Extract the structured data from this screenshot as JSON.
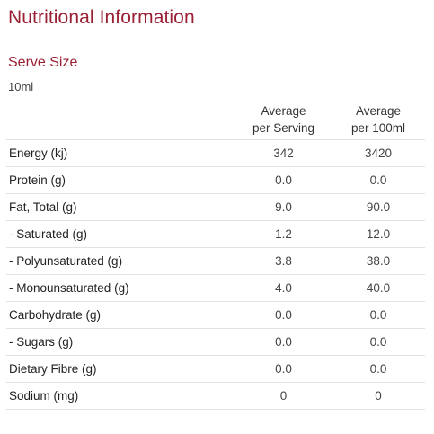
{
  "header": {
    "title": "Nutritional Information"
  },
  "serve_size": {
    "label": "Serve Size",
    "value": "10ml"
  },
  "table": {
    "columns": [
      {
        "line1": "Average",
        "line2": "per Serving"
      },
      {
        "line1": "Average",
        "line2": "per 100ml"
      }
    ],
    "rows": [
      {
        "name": "Energy (kj)",
        "per_serving": "342",
        "per_100": "3420"
      },
      {
        "name": "Protein (g)",
        "per_serving": "0.0",
        "per_100": "0.0"
      },
      {
        "name": "Fat, Total (g)",
        "per_serving": "9.0",
        "per_100": "90.0"
      },
      {
        "name": "- Saturated (g)",
        "per_serving": "1.2",
        "per_100": "12.0"
      },
      {
        "name": "- Polyunsaturated (g)",
        "per_serving": "3.8",
        "per_100": "38.0"
      },
      {
        "name": "- Monounsaturated (g)",
        "per_serving": "4.0",
        "per_100": "40.0"
      },
      {
        "name": "Carbohydrate (g)",
        "per_serving": "0.0",
        "per_100": "0.0"
      },
      {
        "name": "- Sugars (g)",
        "per_serving": "0.0",
        "per_100": "0.0"
      },
      {
        "name": "Dietary Fibre (g)",
        "per_serving": "0.0",
        "per_100": "0.0"
      },
      {
        "name": "Sodium (mg)",
        "per_serving": "0",
        "per_100": "0"
      }
    ]
  },
  "colors": {
    "accent": "#9a2033",
    "text": "#333333",
    "divider": "#e3e3e3"
  }
}
